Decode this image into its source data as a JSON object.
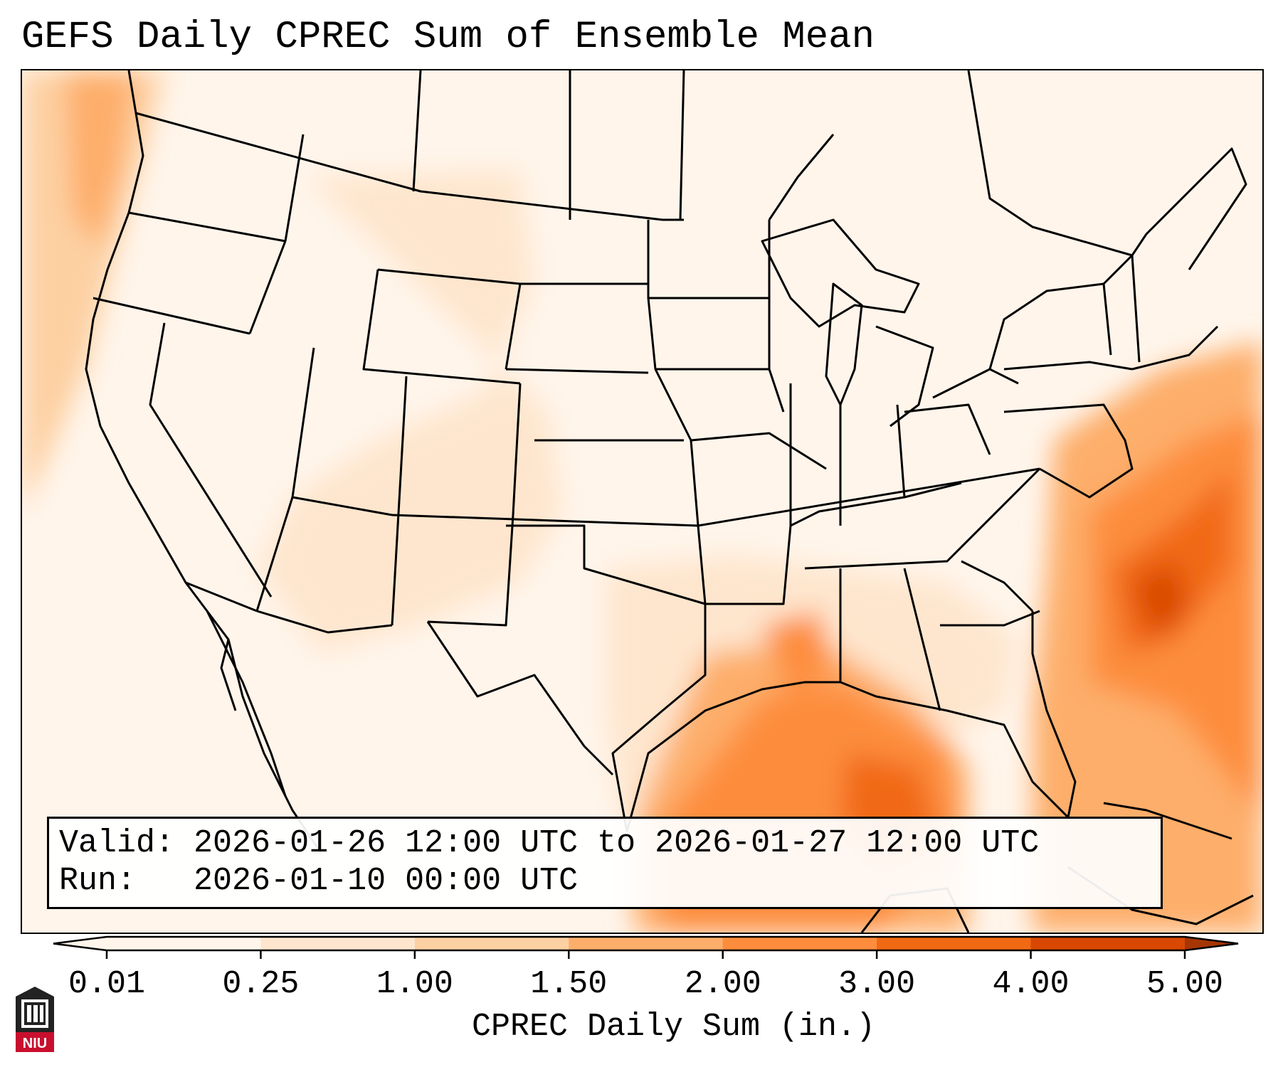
{
  "title": "GEFS Daily CPREC Sum of Ensemble Mean",
  "info": {
    "valid_label": "Valid:",
    "valid_value": "2026-01-26 12:00 UTC to 2026-01-27 12:00 UTC",
    "run_label": "Run:",
    "run_value": "2026-01-10 00:00 UTC"
  },
  "colorbar": {
    "label": "CPREC Daily Sum (in.)",
    "ticks": [
      "0.01",
      "0.25",
      "1.00",
      "1.50",
      "2.00",
      "3.00",
      "4.00",
      "5.00"
    ],
    "colors": [
      "#fff5eb",
      "#fee6ce",
      "#fdd0a2",
      "#fdae6b",
      "#fd8d3c",
      "#f16913",
      "#d94801",
      "#a63603"
    ],
    "extend": "both"
  },
  "logo": {
    "text": "NIU",
    "icon": "niu-building-logo-icon",
    "color": "#c8102e"
  },
  "map": {
    "projection": "lambert-conformal",
    "region": "Contiguous United States",
    "field": "CPREC daily sum (ensemble mean)",
    "colors": {
      "border": "#000000",
      "background": "#fff5eb"
    }
  }
}
